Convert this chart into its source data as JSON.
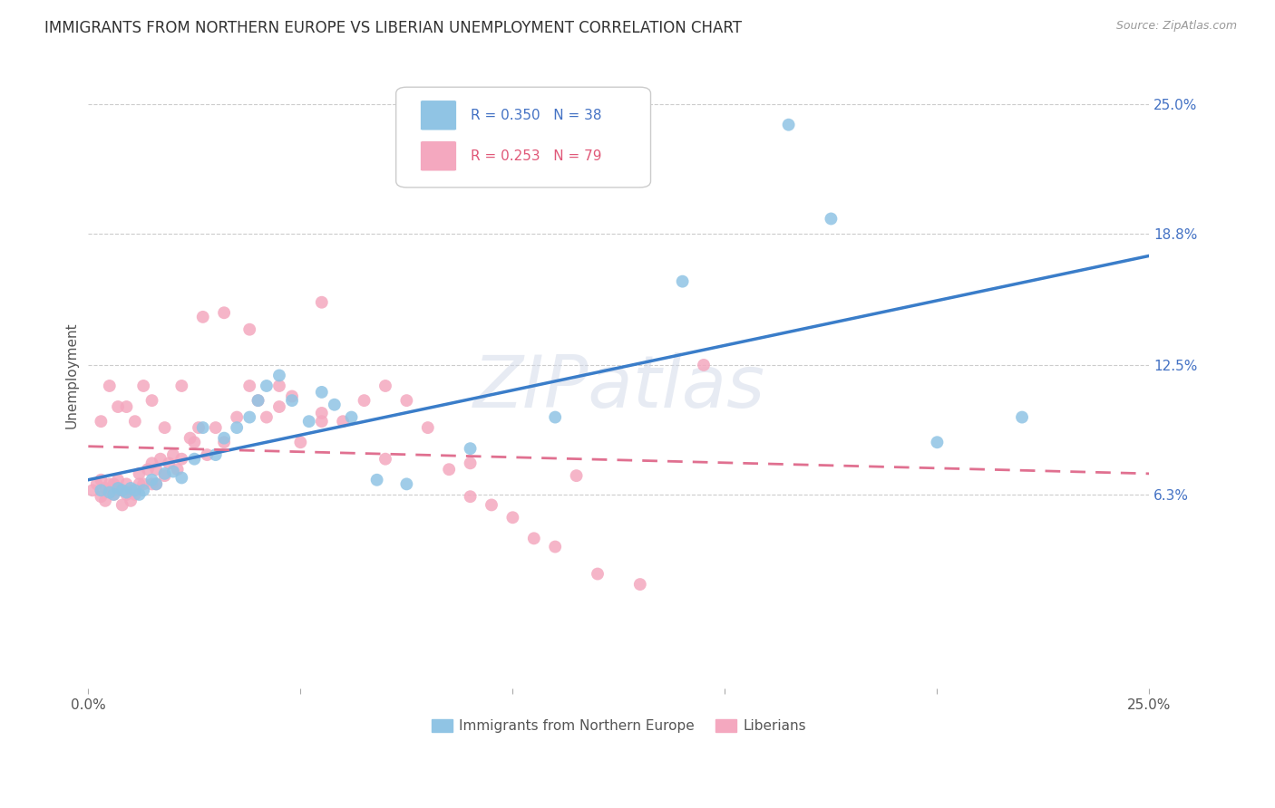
{
  "title": "IMMIGRANTS FROM NORTHERN EUROPE VS LIBERIAN UNEMPLOYMENT CORRELATION CHART",
  "source": "Source: ZipAtlas.com",
  "ylabel": "Unemployment",
  "ytick_vals": [
    0.063,
    0.125,
    0.188,
    0.25
  ],
  "ytick_labels": [
    "6.3%",
    "12.5%",
    "18.8%",
    "25.0%"
  ],
  "xrange": [
    0.0,
    0.25
  ],
  "yrange": [
    -0.03,
    0.27
  ],
  "legend_blue_r": "0.350",
  "legend_blue_n": "38",
  "legend_pink_r": "0.253",
  "legend_pink_n": "79",
  "legend_label_blue": "Immigrants from Northern Europe",
  "legend_label_pink": "Liberians",
  "blue_color": "#90c4e4",
  "pink_color": "#f4a8bf",
  "blue_line_color": "#3a7dc9",
  "pink_line_color": "#e07090",
  "watermark_text": "ZIPatlas",
  "blue_x": [
    0.003,
    0.005,
    0.006,
    0.007,
    0.008,
    0.009,
    0.01,
    0.011,
    0.012,
    0.013,
    0.015,
    0.016,
    0.018,
    0.02,
    0.022,
    0.025,
    0.027,
    0.03,
    0.032,
    0.035,
    0.038,
    0.04,
    0.042,
    0.045,
    0.048,
    0.052,
    0.055,
    0.058,
    0.062,
    0.068,
    0.075,
    0.09,
    0.11,
    0.14,
    0.175,
    0.2,
    0.22,
    0.165
  ],
  "blue_y": [
    0.065,
    0.064,
    0.063,
    0.066,
    0.065,
    0.064,
    0.066,
    0.065,
    0.063,
    0.065,
    0.07,
    0.068,
    0.073,
    0.074,
    0.071,
    0.08,
    0.095,
    0.082,
    0.09,
    0.095,
    0.1,
    0.108,
    0.115,
    0.12,
    0.108,
    0.098,
    0.112,
    0.106,
    0.1,
    0.07,
    0.068,
    0.085,
    0.1,
    0.165,
    0.195,
    0.088,
    0.1,
    0.24
  ],
  "pink_x": [
    0.001,
    0.002,
    0.003,
    0.003,
    0.004,
    0.004,
    0.005,
    0.005,
    0.006,
    0.006,
    0.007,
    0.007,
    0.008,
    0.008,
    0.009,
    0.009,
    0.01,
    0.01,
    0.011,
    0.012,
    0.012,
    0.013,
    0.014,
    0.015,
    0.015,
    0.016,
    0.016,
    0.017,
    0.018,
    0.019,
    0.02,
    0.021,
    0.022,
    0.024,
    0.025,
    0.026,
    0.028,
    0.03,
    0.032,
    0.035,
    0.038,
    0.04,
    0.042,
    0.045,
    0.048,
    0.05,
    0.055,
    0.06,
    0.065,
    0.07,
    0.075,
    0.08,
    0.085,
    0.09,
    0.095,
    0.1,
    0.105,
    0.11,
    0.12,
    0.13,
    0.003,
    0.005,
    0.007,
    0.009,
    0.011,
    0.013,
    0.015,
    0.018,
    0.022,
    0.027,
    0.032,
    0.038,
    0.045,
    0.055,
    0.07,
    0.09,
    0.115,
    0.145,
    0.055
  ],
  "pink_y": [
    0.065,
    0.068,
    0.07,
    0.062,
    0.066,
    0.06,
    0.065,
    0.068,
    0.063,
    0.068,
    0.065,
    0.07,
    0.065,
    0.058,
    0.063,
    0.068,
    0.065,
    0.06,
    0.063,
    0.068,
    0.073,
    0.068,
    0.075,
    0.068,
    0.078,
    0.068,
    0.075,
    0.08,
    0.072,
    0.078,
    0.082,
    0.075,
    0.08,
    0.09,
    0.088,
    0.095,
    0.082,
    0.095,
    0.088,
    0.1,
    0.115,
    0.108,
    0.1,
    0.105,
    0.11,
    0.088,
    0.102,
    0.098,
    0.108,
    0.115,
    0.108,
    0.095,
    0.075,
    0.062,
    0.058,
    0.052,
    0.042,
    0.038,
    0.025,
    0.02,
    0.098,
    0.115,
    0.105,
    0.105,
    0.098,
    0.115,
    0.108,
    0.095,
    0.115,
    0.148,
    0.15,
    0.142,
    0.115,
    0.098,
    0.08,
    0.078,
    0.072,
    0.125,
    0.155
  ]
}
